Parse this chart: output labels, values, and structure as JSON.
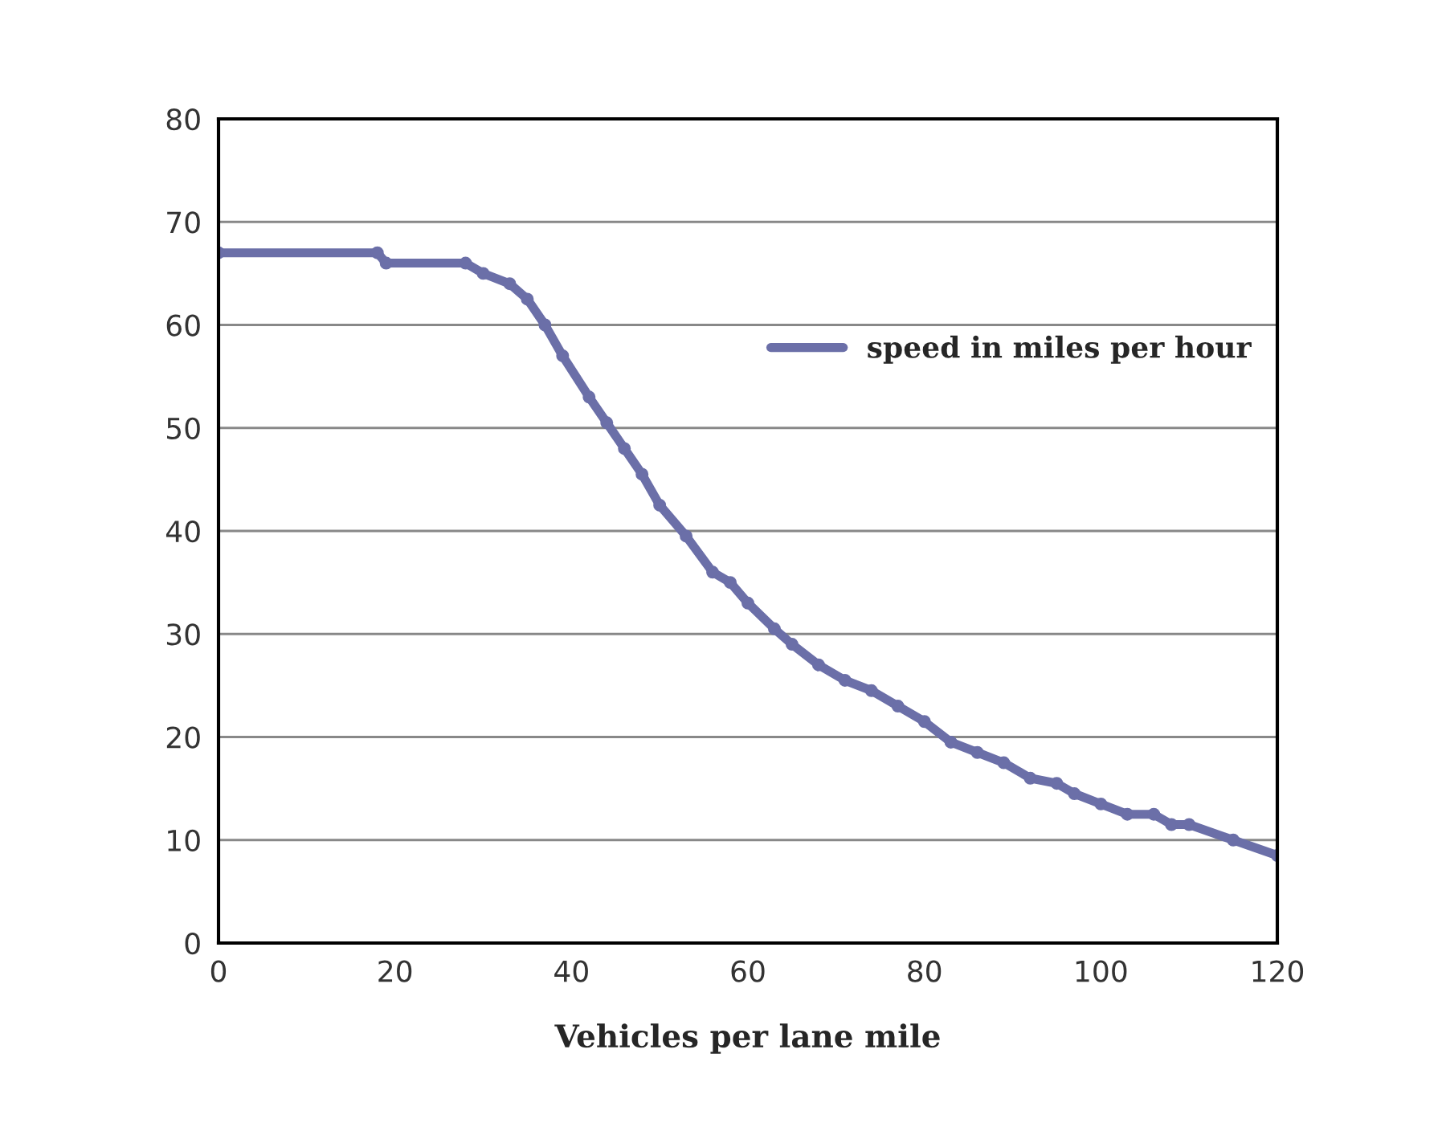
{
  "chart_data": {
    "type": "line",
    "xlabel": "Vehicles per lane mile",
    "xlim": [
      0,
      120
    ],
    "xticks": [
      0,
      20,
      40,
      60,
      80,
      100,
      120
    ],
    "ylim": [
      0,
      80
    ],
    "yticks": [
      0,
      10,
      20,
      30,
      40,
      50,
      60,
      70,
      80
    ],
    "grid": "y",
    "legend": "right",
    "marker": "circle",
    "line_style": "solid",
    "series": [
      {
        "name": "speed in miles per hour",
        "color": "#6b6fa8",
        "x": [
          0,
          18,
          19,
          28,
          30,
          33,
          35,
          37,
          39,
          42,
          44,
          46,
          48,
          50,
          53,
          56,
          58,
          60,
          63,
          65,
          68,
          71,
          74,
          77,
          80,
          83,
          86,
          89,
          92,
          95,
          97,
          100,
          103,
          106,
          108,
          110,
          115,
          120
        ],
        "values": [
          67,
          67,
          66,
          66,
          65,
          64,
          62.5,
          60,
          57,
          53,
          50.5,
          48,
          45.5,
          42.5,
          39.5,
          36,
          35,
          33,
          30.5,
          29,
          27,
          25.5,
          24.5,
          23,
          21.5,
          19.5,
          18.5,
          17.5,
          16,
          15.5,
          14.5,
          13.5,
          12.5,
          12.5,
          11.5,
          11.5,
          10,
          8.5
        ]
      }
    ]
  }
}
